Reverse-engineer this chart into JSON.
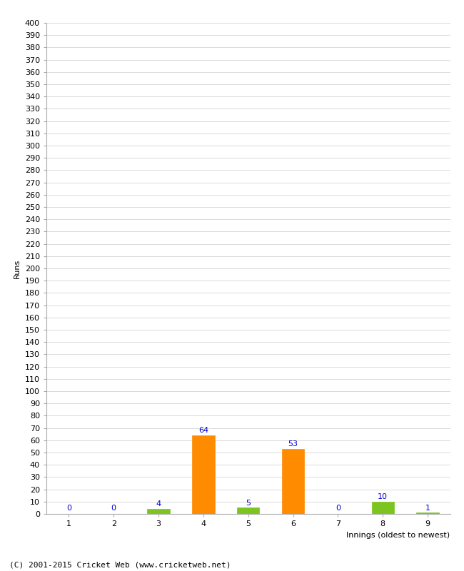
{
  "xlabel": "Innings (oldest to newest)",
  "ylabel": "Runs",
  "footer": "(C) 2001-2015 Cricket Web (www.cricketweb.net)",
  "innings": [
    1,
    2,
    3,
    4,
    5,
    6,
    7,
    8,
    9
  ],
  "values": [
    0,
    0,
    4,
    64,
    5,
    53,
    0,
    10,
    1
  ],
  "colors": [
    "#7cc520",
    "#7cc520",
    "#7cc520",
    "#ff8c00",
    "#7cc520",
    "#ff8c00",
    "#7cc520",
    "#7cc520",
    "#7cc520"
  ],
  "label_color": "#0000cc",
  "ylim": [
    0,
    400
  ],
  "ytick_step": 10,
  "background_color": "#ffffff",
  "grid_color": "#cccccc",
  "bar_width": 0.5,
  "axis_fontsize": 8,
  "label_fontsize": 8,
  "footer_fontsize": 8
}
